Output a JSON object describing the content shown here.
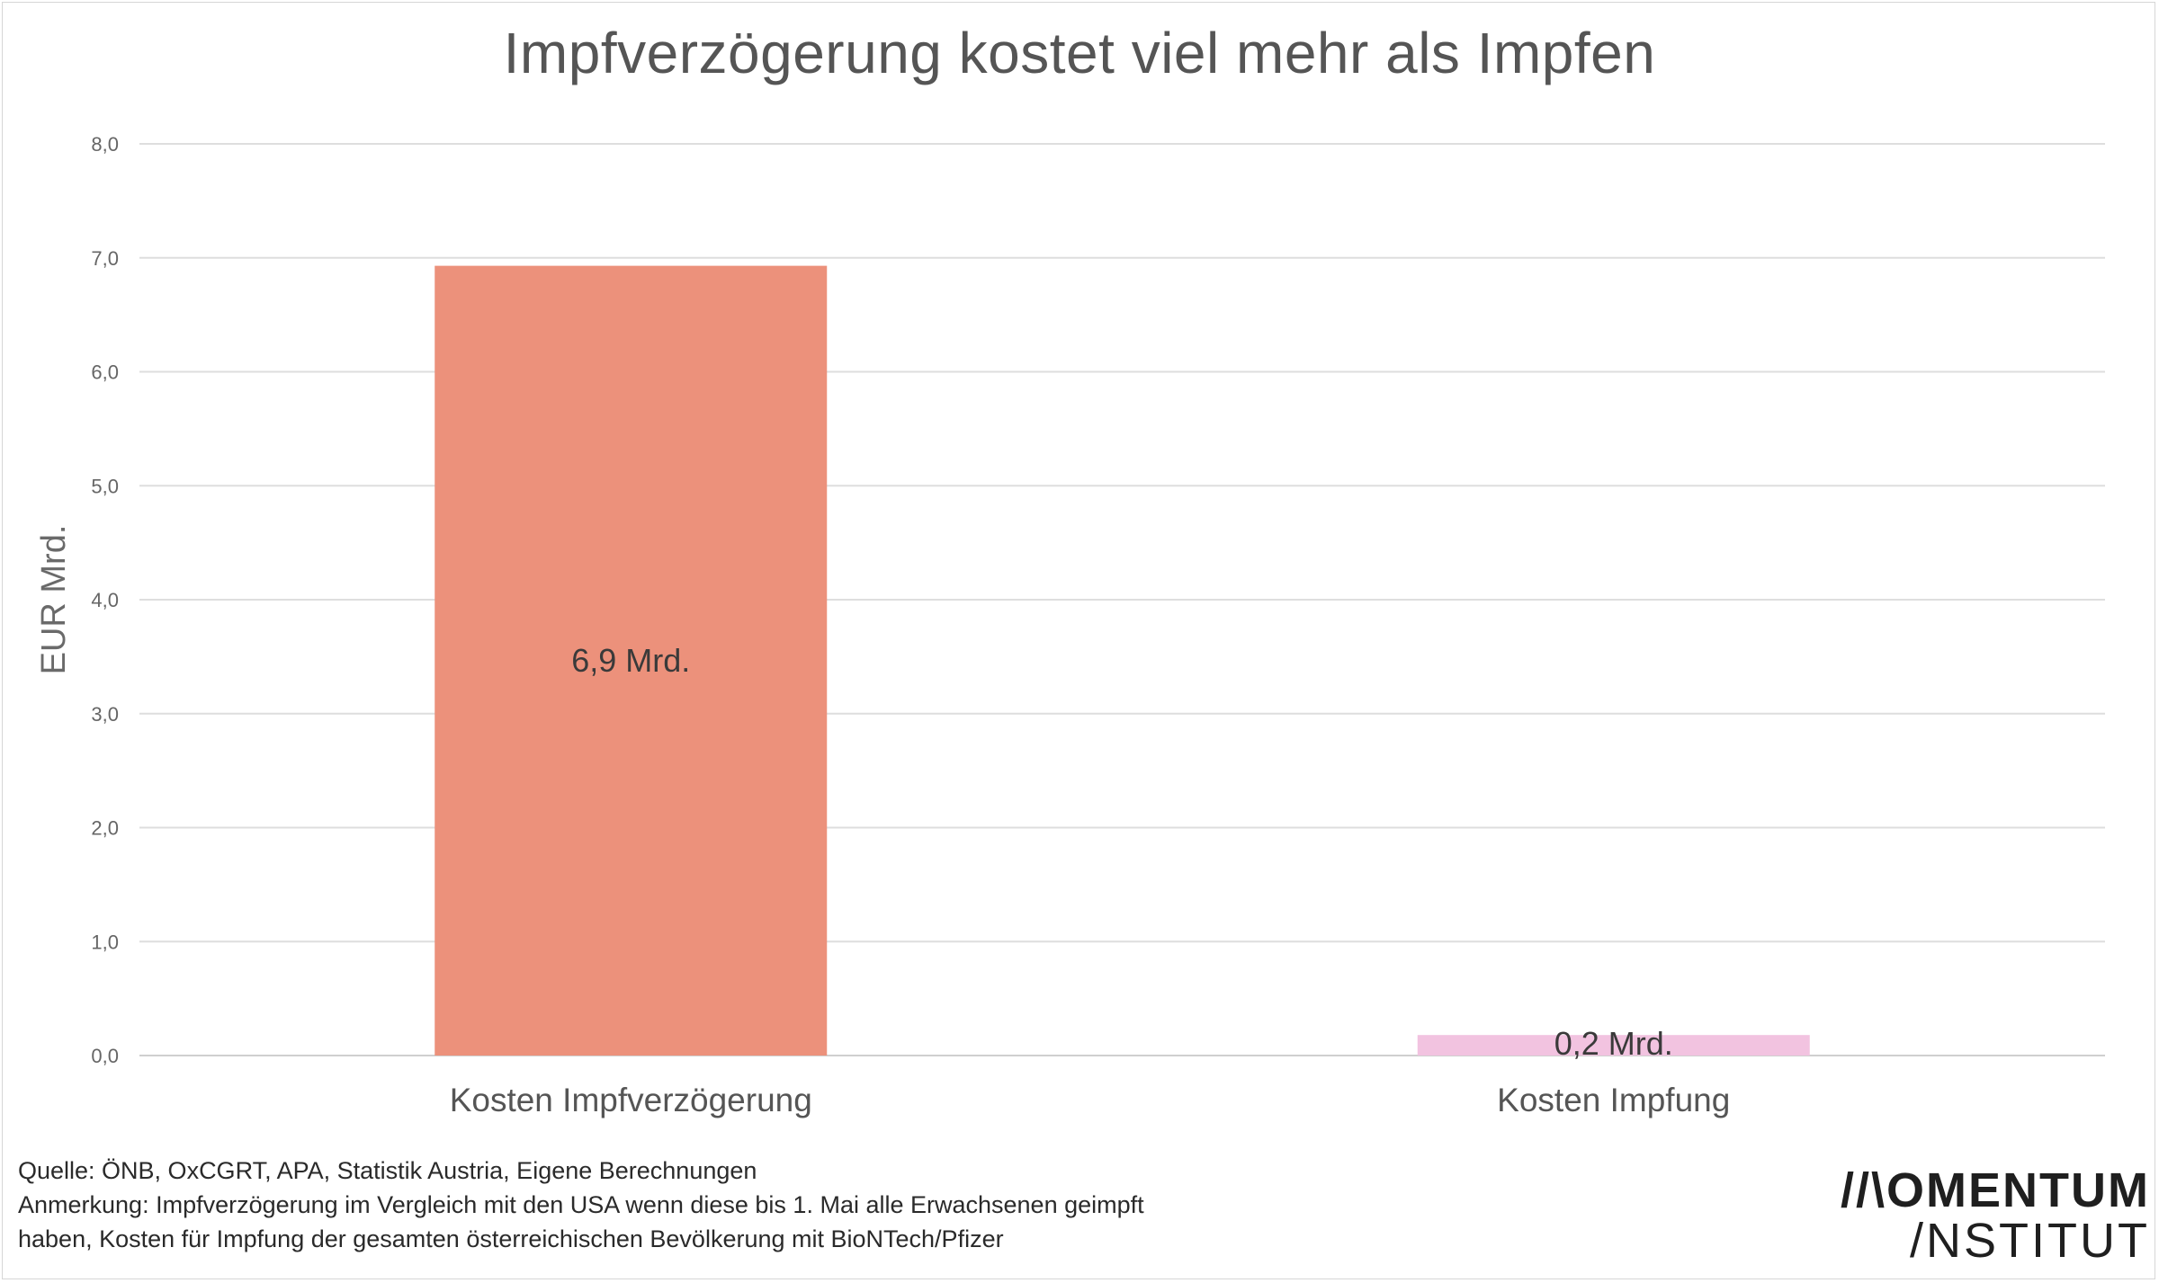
{
  "chart_data": {
    "type": "bar",
    "title": "Impfverzögerung kostet viel mehr als Impfen",
    "ylabel": "EUR Mrd.",
    "xlabel": "",
    "ylim": [
      0,
      8
    ],
    "yticks": [
      0,
      1,
      2,
      3,
      4,
      5,
      6,
      7,
      8
    ],
    "ytick_labels": [
      "0,0",
      "1,0",
      "2,0",
      "3,0",
      "4,0",
      "5,0",
      "6,0",
      "7,0",
      "8,0"
    ],
    "grid": true,
    "categories": [
      "Kosten Impfverzögerung",
      "Kosten Impfung"
    ],
    "values": [
      6.93,
      0.18
    ],
    "data_labels": [
      "6,9 Mrd.",
      "0,2 Mrd."
    ],
    "colors": [
      "#ec917b",
      "#f2c3e0"
    ]
  },
  "footer": {
    "source": "Quelle: ÖNB, OxCGRT, APA, Statistik Austria, Eigene Berechnungen",
    "note_line1": "Anmerkung: Impfverzögerung im Vergleich mit den USA wenn diese bis 1. Mai alle Erwachsenen geimpft",
    "note_line2": "haben, Kosten für Impfung der gesamten österreichischen Bevölkerung mit BioNTech/Pfizer"
  },
  "logo": {
    "line1": "//\\OMENTUM",
    "line2": "/NSTITUT"
  }
}
